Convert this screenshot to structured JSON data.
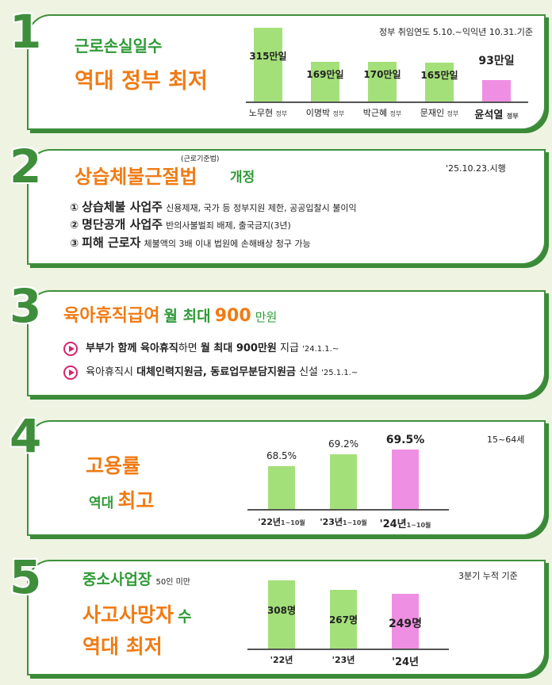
{
  "colors": {
    "green_bar": "#a4e07a",
    "pink_bar": "#ef8fe3",
    "border": "#3f8f3c",
    "orange": "#f07b14",
    "green_text": "#2e9a36"
  },
  "s1": {
    "num": "1",
    "title1": "근로손실일수",
    "title2": "역대 정부 최저",
    "note": "정부 취임연도 5.10.~익익년 10.31.기준",
    "unit": "만일",
    "chart_data": {
      "type": "bar",
      "categories": [
        "노무현",
        "이명박",
        "박근혜",
        "문재인",
        "윤석열"
      ],
      "suffix": "정부",
      "values": [
        315,
        169,
        170,
        165,
        93
      ],
      "unit": "만일",
      "highlight_index": 4,
      "ylim": [
        0,
        340
      ]
    }
  },
  "s2": {
    "num": "2",
    "tiny": "(근로기준법)",
    "title": "상습체불근절법",
    "title_tail": "개정",
    "date": "'25.10.23.시행",
    "items": [
      {
        "n": "①",
        "b": "상습체불 사업주",
        "t": "신용제재, 국가 등 정부지원 제한, 공공입찰시 불이익"
      },
      {
        "n": "②",
        "b": "명단공개 사업주",
        "t": "반의사불벌죄 배제, 출국금지(3년)"
      },
      {
        "n": "③",
        "b": "피해 근로자",
        "t": "체불액의 3배 이내 법원에 손해배상 청구 가능"
      }
    ]
  },
  "s3": {
    "num": "3",
    "t1": "육아휴직급여",
    "t2": "월 최대",
    "t3": "900",
    "t4": "만원",
    "l1a": "부부가 함께 육아휴직",
    "l1b": "하면",
    "l1c": "월 최대 900만원",
    "l1d": "지급",
    "l1e": "'24.1.1.~",
    "l2a": "육아휴직시",
    "l2b": "대체인력지원금, 동료업무분담지원금",
    "l2c": "신설",
    "l2d": "'25.1.1.~"
  },
  "s4": {
    "num": "4",
    "t1": "고용률",
    "t2": "역대",
    "t3": "최고",
    "note": "15~64세",
    "period": "1~10월",
    "chart_data": {
      "type": "bar",
      "categories": [
        "'22년",
        "'23년",
        "'24년"
      ],
      "values": [
        68.5,
        69.2,
        69.5
      ],
      "labels": [
        "68.5%",
        "69.2%",
        "69.5%"
      ],
      "unit": "%",
      "highlight_index": 2,
      "ylim": [
        66,
        70
      ]
    }
  },
  "s5": {
    "num": "5",
    "t1": "중소사업장",
    "t1b": "50인 미만",
    "t2": "사고사망자",
    "t2b": "수",
    "t3": "역대 최저",
    "note": "3분기 누적 기준",
    "chart_data": {
      "type": "bar",
      "categories": [
        "'22년",
        "'23년",
        "'24년"
      ],
      "values": [
        308,
        267,
        249
      ],
      "unit": "명",
      "highlight_index": 2,
      "ylim": [
        0,
        330
      ]
    }
  }
}
